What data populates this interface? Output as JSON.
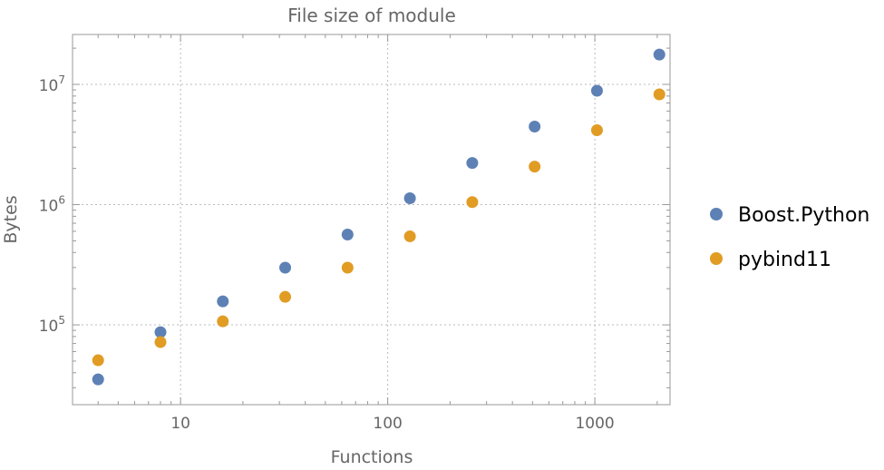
{
  "chart_data": {
    "type": "scatter",
    "title": "File size of module",
    "xlabel": "Functions",
    "ylabel": "Bytes",
    "xscale": "log",
    "yscale": "log",
    "xlim": [
      3.01,
      2306
    ],
    "ylim": [
      21700,
      26000000
    ],
    "grid": true,
    "legend_position": "right",
    "x_ticks": [
      {
        "value": 10,
        "label": "10"
      },
      {
        "value": 100,
        "label": "100"
      },
      {
        "value": 1000,
        "label": "1000"
      }
    ],
    "y_ticks": [
      {
        "value": 100000,
        "base": "10",
        "exp": "5"
      },
      {
        "value": 1000000,
        "base": "10",
        "exp": "6"
      },
      {
        "value": 10000000,
        "base": "10",
        "exp": "7"
      }
    ],
    "x": [
      4,
      8,
      16,
      32,
      64,
      128,
      256,
      512,
      1024,
      2048
    ],
    "series": [
      {
        "name": "Boost.Python",
        "color": "#5E81B5",
        "values": [
          35200,
          87000,
          157000,
          299000,
          564000,
          1130000,
          2220000,
          4460000,
          8850000,
          17700000
        ]
      },
      {
        "name": "pybind11",
        "color": "#E19C24",
        "values": [
          50800,
          71900,
          107000,
          171000,
          299000,
          545000,
          1050000,
          2070000,
          4160000,
          8260000
        ]
      }
    ]
  }
}
